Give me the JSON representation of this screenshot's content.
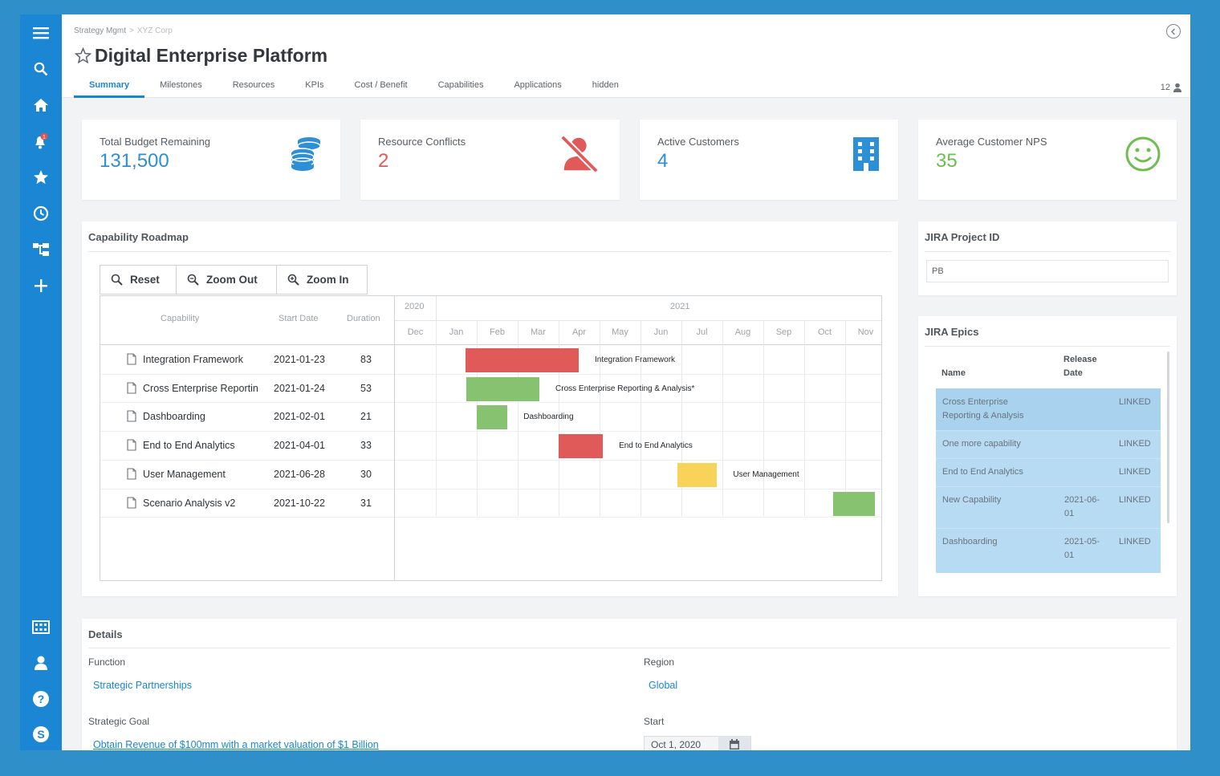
{
  "breadcrumb": {
    "root": "Strategy Mgmt",
    "separator": ">",
    "current": "XYZ Corp"
  },
  "page": {
    "title": "Digital Enterprise Platform"
  },
  "tabs": [
    {
      "label": "Summary",
      "active": true
    },
    {
      "label": "Milestones"
    },
    {
      "label": "Resources"
    },
    {
      "label": "KPIs"
    },
    {
      "label": "Cost / Benefit"
    },
    {
      "label": "Capabilities"
    },
    {
      "label": "Applications"
    },
    {
      "label": "hidden"
    }
  ],
  "header": {
    "user_count": "12"
  },
  "sidebar": {
    "top_icons": [
      "menu-icon",
      "search-icon",
      "home-icon",
      "notification-bell-icon",
      "star-icon",
      "clock-icon",
      "hierarchy-icon",
      "plus-icon"
    ],
    "bottom_icons": [
      "building-icon",
      "user-icon",
      "help-icon",
      "app-logo-icon"
    ],
    "color": "#1a86d4"
  },
  "kpis": [
    {
      "label": "Total Budget Remaining",
      "value": "131,500",
      "color": "#2d8fd5",
      "icon": "coins-stack-icon"
    },
    {
      "label": "Resource Conflicts",
      "value": "2",
      "color": "#e05a5a",
      "icon": "user-slash-icon"
    },
    {
      "label": "Active Customers",
      "value": "4",
      "color": "#2d8fd5",
      "icon": "building-icon"
    },
    {
      "label": "Average Customer NPS",
      "value": "35",
      "color": "#6cbf4e",
      "icon": "smiley-icon"
    }
  ],
  "roadmap": {
    "title": "Capability Roadmap",
    "buttons": {
      "reset": "Reset",
      "zoom_out": "Zoom Out",
      "zoom_in": "Zoom In"
    },
    "columns": {
      "capability": "Capability",
      "start": "Start Date",
      "duration": "Duration"
    },
    "years": [
      "2020",
      "2021"
    ],
    "months": [
      "Dec",
      "Jan",
      "Feb",
      "Mar",
      "Apr",
      "May",
      "Jun",
      "Jul",
      "Aug",
      "Sep",
      "Oct",
      "Nov"
    ],
    "rows": [
      {
        "name": "Integration Framework",
        "start": "2021-01-23",
        "duration": "83",
        "bar_label": "Integration Framework",
        "color": "#e05a5a",
        "start_month": 1.72,
        "length_months": 2.77
      },
      {
        "name": "Cross Enterprise Reportin",
        "start": "2021-01-24",
        "duration": "53",
        "bar_label": "Cross Enterprise Reporting & Analysis*",
        "color": "#86c270",
        "start_month": 1.75,
        "length_months": 1.78
      },
      {
        "name": "Dashboarding",
        "start": "2021-02-01",
        "duration": "21",
        "bar_label": "Dashboarding",
        "color": "#86c270",
        "start_month": 2.0,
        "length_months": 0.75
      },
      {
        "name": "End to End Analytics",
        "start": "2021-04-01",
        "duration": "33",
        "bar_label": "End to End Analytics",
        "color": "#e05a5a",
        "start_month": 4.0,
        "length_months": 1.08
      },
      {
        "name": "User Management",
        "start": "2021-06-28",
        "duration": "30",
        "bar_label": "User Management",
        "color": "#f7d35a",
        "start_month": 6.9,
        "length_months": 0.97
      },
      {
        "name": "Scenario Analysis v2",
        "start": "2021-10-22",
        "duration": "31",
        "bar_label": "",
        "color": "#86c270",
        "start_month": 10.7,
        "length_months": 1.02
      }
    ]
  },
  "jira_project": {
    "title": "JIRA Project ID",
    "value": "PB"
  },
  "jira_epics": {
    "title": "JIRA Epics",
    "headers": {
      "name": "Name",
      "release_line1": "Release",
      "release_line2": "Date"
    },
    "rows": [
      {
        "name_1": "Cross Enterprise",
        "name_2": "Reporting & Analysis",
        "date_1": "",
        "date_2": "",
        "status": "LINKED"
      },
      {
        "name_1": "One more capability",
        "name_2": "",
        "date_1": "",
        "date_2": "",
        "status": "LINKED"
      },
      {
        "name_1": "End to End Analytics",
        "name_2": "",
        "date_1": "",
        "date_2": "",
        "status": "LINKED"
      },
      {
        "name_1": "New Capability",
        "name_2": "",
        "date_1": "2021-06-",
        "date_2": "01",
        "status": "LINKED"
      },
      {
        "name_1": "Dashboarding",
        "name_2": "",
        "date_1": "2021-05-",
        "date_2": "01",
        "status": "LINKED"
      }
    ]
  },
  "details": {
    "title": "Details",
    "function_label": "Function",
    "function_value": "Strategic Partnerships",
    "region_label": "Region",
    "region_value": "Global",
    "goal_label": "Strategic Goal",
    "goal_value": "Obtain Revenue of $100mm with a market valuation of $1 Billion",
    "start_label": "Start",
    "start_value": "Oct 1, 2020"
  }
}
